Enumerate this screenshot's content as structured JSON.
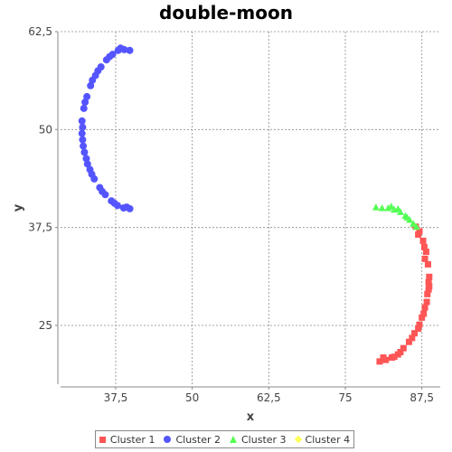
{
  "chart_data": {
    "type": "scatter",
    "title": "double-moon",
    "xlabel": "x",
    "ylabel": "y",
    "xlim": [
      28.5,
      90.5
    ],
    "ylim": [
      17.5,
      62.5
    ],
    "xticks": [
      37.5,
      50,
      62.5,
      75,
      87.5
    ],
    "yticks": [
      25,
      37.5,
      50,
      62.5
    ],
    "xtick_labels": [
      "37,5",
      "50",
      "62,5",
      "75",
      "87,5"
    ],
    "ytick_labels": [
      "25",
      "37,5",
      "50",
      "62,5"
    ],
    "grid": true,
    "legend_position": "bottom",
    "series": [
      {
        "name": "Cluster 1",
        "marker": "square",
        "color": "#ff5555",
        "points": [
          [
            80.6,
            20.4
          ],
          [
            81.6,
            20.6
          ],
          [
            82.6,
            20.9
          ],
          [
            83.6,
            21.3
          ],
          [
            84.5,
            22.1
          ],
          [
            85.4,
            22.9
          ],
          [
            86.3,
            24.0
          ],
          [
            87.1,
            25.1
          ],
          [
            87.8,
            26.5
          ],
          [
            88.3,
            28.0
          ],
          [
            88.6,
            29.6
          ],
          [
            88.7,
            31.2
          ],
          [
            88.5,
            32.8
          ],
          [
            88.2,
            34.4
          ],
          [
            87.7,
            35.8
          ],
          [
            87.1,
            37.0
          ],
          [
            86.5,
            37.6
          ],
          [
            86.9,
            36.6
          ],
          [
            88.0,
            33.5
          ],
          [
            88.6,
            30.5
          ],
          [
            88.0,
            27.3
          ],
          [
            85.9,
            23.4
          ],
          [
            83.0,
            21.0
          ],
          [
            81.2,
            20.9
          ],
          [
            86.9,
            24.6
          ],
          [
            84.0,
            21.6
          ],
          [
            87.5,
            26.0
          ],
          [
            88.4,
            29.0
          ],
          [
            88.7,
            30.0
          ],
          [
            87.9,
            35.0
          ]
        ]
      },
      {
        "name": "Cluster 2",
        "marker": "circle",
        "color": "#5555ff",
        "points": [
          [
            39.8,
            39.9
          ],
          [
            38.8,
            40.0
          ],
          [
            37.8,
            40.3
          ],
          [
            36.8,
            40.9
          ],
          [
            35.8,
            41.7
          ],
          [
            34.9,
            42.6
          ],
          [
            34.0,
            43.7
          ],
          [
            33.3,
            44.9
          ],
          [
            32.7,
            46.3
          ],
          [
            32.2,
            47.9
          ],
          [
            32.0,
            49.5
          ],
          [
            32.0,
            51.1
          ],
          [
            32.3,
            52.7
          ],
          [
            32.8,
            54.2
          ],
          [
            33.4,
            55.6
          ],
          [
            34.2,
            56.9
          ],
          [
            35.1,
            58.0
          ],
          [
            36.0,
            58.9
          ],
          [
            37.0,
            59.6
          ],
          [
            37.9,
            60.1
          ],
          [
            38.9,
            60.2
          ],
          [
            39.8,
            60.1
          ],
          [
            38.3,
            60.4
          ],
          [
            36.5,
            59.3
          ],
          [
            33.7,
            56.3
          ],
          [
            32.5,
            53.5
          ],
          [
            32.1,
            50.3
          ],
          [
            32.4,
            47.1
          ],
          [
            33.6,
            44.3
          ],
          [
            35.3,
            42.1
          ],
          [
            37.3,
            40.6
          ],
          [
            39.3,
            40.1
          ],
          [
            34.6,
            57.5
          ],
          [
            32.9,
            45.6
          ],
          [
            32.1,
            48.7
          ]
        ]
      },
      {
        "name": "Cluster 3",
        "marker": "triangle",
        "color": "#55ff55",
        "points": [
          [
            80.0,
            40.1
          ],
          [
            81.0,
            40.0
          ],
          [
            82.0,
            40.0
          ],
          [
            83.0,
            39.8
          ],
          [
            84.0,
            39.5
          ],
          [
            84.8,
            39.0
          ],
          [
            85.5,
            38.5
          ],
          [
            86.1,
            38.0
          ],
          [
            86.6,
            37.6
          ],
          [
            82.5,
            40.2
          ],
          [
            83.6,
            39.9
          ],
          [
            85.1,
            38.8
          ]
        ]
      },
      {
        "name": "Cluster 4",
        "marker": "diamond",
        "color": "#ffff55",
        "points": []
      }
    ]
  }
}
